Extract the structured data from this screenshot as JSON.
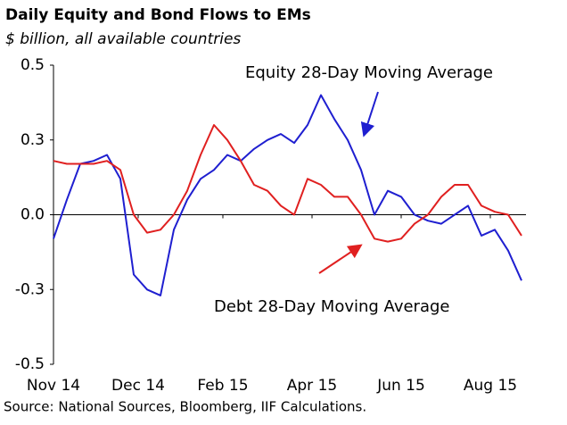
{
  "chart_data": {
    "type": "line",
    "title": "Daily Equity and Bond Flows to EMs",
    "subtitle": "$ billion, all available countries",
    "source": "Source: National Sources, Bloomberg, IIF Calculations.",
    "annotations": [
      "Equity 28-Day Moving Average",
      "Debt 28-Day Moving Average"
    ],
    "x": [
      0,
      3,
      6,
      9,
      12,
      15,
      18,
      21,
      24,
      27,
      30,
      33,
      36,
      39,
      42,
      45,
      48,
      51,
      54,
      57,
      60,
      63,
      66,
      69,
      72,
      75,
      78,
      81,
      84,
      87,
      90,
      93,
      96,
      99,
      102,
      105
    ],
    "series": [
      {
        "name": "Equity 28-Day Moving Average",
        "color": "#1f1fd0",
        "values": [
          -0.08,
          0.05,
          0.17,
          0.18,
          0.2,
          0.12,
          -0.2,
          -0.25,
          -0.27,
          -0.05,
          0.05,
          0.12,
          0.15,
          0.2,
          0.18,
          0.22,
          0.25,
          0.27,
          0.24,
          0.3,
          0.4,
          0.32,
          0.25,
          0.15,
          0.0,
          0.08,
          0.06,
          0.0,
          -0.02,
          -0.03,
          0.0,
          0.03,
          -0.07,
          -0.05,
          -0.12,
          -0.22
        ]
      },
      {
        "name": "Debt 28-Day Moving Average",
        "color": "#e02020",
        "values": [
          0.18,
          0.17,
          0.17,
          0.17,
          0.18,
          0.15,
          0.0,
          -0.06,
          -0.05,
          0.0,
          0.08,
          0.2,
          0.3,
          0.25,
          0.18,
          0.1,
          0.08,
          0.03,
          0.0,
          0.12,
          0.1,
          0.06,
          0.06,
          0.0,
          -0.08,
          -0.09,
          -0.08,
          -0.03,
          0.0,
          0.06,
          0.1,
          0.1,
          0.03,
          0.01,
          0.0,
          -0.07
        ]
      }
    ],
    "xlim": [
      0,
      106
    ],
    "xticks": [
      {
        "value": 0,
        "label": "Nov 14"
      },
      {
        "value": 19,
        "label": "Dec 14"
      },
      {
        "value": 38,
        "label": "Feb 15"
      },
      {
        "value": 58,
        "label": "Apr 15"
      },
      {
        "value": 78,
        "label": "Jun 15"
      },
      {
        "value": 98,
        "label": "Aug 15"
      }
    ],
    "ylim": [
      -0.5,
      0.5
    ],
    "yticks": [
      0.5,
      {
        "value": 0.25,
        "label": "0.3"
      },
      {
        "value": 0,
        "label": "0.0"
      },
      {
        "value": -0.25,
        "label": "-0.3"
      },
      -0.5
    ],
    "grid": false
  }
}
